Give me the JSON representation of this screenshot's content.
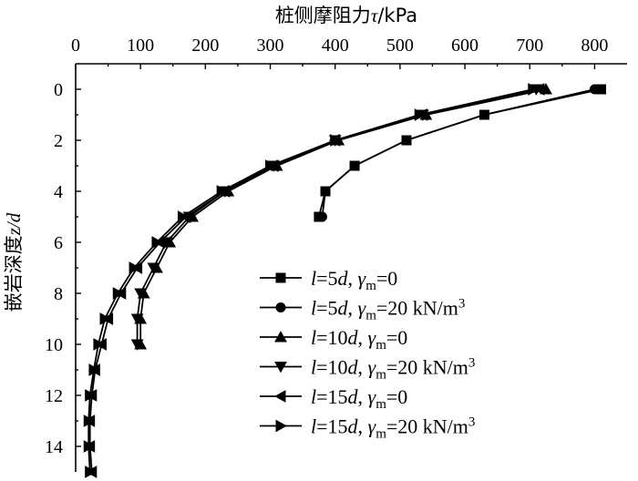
{
  "chart_data": {
    "type": "line",
    "title": "",
    "xlabel_cjk": "桩侧摩阻力",
    "xlabel_var": "τ",
    "xlabel_unit": "/kPa",
    "ylabel_cjk": "嵌岩深度",
    "ylabel_var": "z/d",
    "x_axis_position": "top",
    "y_axis_inverted": true,
    "xlim": [
      0,
      850
    ],
    "ylim": [
      15,
      -1
    ],
    "x_ticks": [
      0,
      100,
      200,
      300,
      400,
      500,
      600,
      700,
      800
    ],
    "y_ticks": [
      0,
      2,
      4,
      6,
      8,
      10,
      12,
      14
    ],
    "grid": false,
    "legend_position": "bottom-right",
    "series": [
      {
        "legend": [
          "l",
          "=5",
          "d",
          ", ",
          "γ",
          "m",
          "=0",
          ""
        ],
        "marker": "square",
        "points": [
          [
            810,
            0
          ],
          [
            630,
            1
          ],
          [
            510,
            2
          ],
          [
            430,
            3
          ],
          [
            385,
            4
          ],
          [
            375,
            5
          ]
        ]
      },
      {
        "legend": [
          "l",
          "=5",
          "d",
          ", ",
          "γ",
          "m",
          "=20 kN/m",
          "3"
        ],
        "marker": "circle",
        "points": [
          [
            800,
            0
          ],
          [
            630,
            1
          ],
          [
            510,
            2
          ],
          [
            430,
            3
          ],
          [
            385,
            4
          ],
          [
            380,
            5
          ]
        ]
      },
      {
        "legend": [
          "l",
          "=10",
          "d",
          ", ",
          "γ",
          "m",
          "=0",
          ""
        ],
        "marker": "triangle-up",
        "points": [
          [
            725,
            0
          ],
          [
            540,
            1
          ],
          [
            405,
            2
          ],
          [
            310,
            3
          ],
          [
            235,
            4
          ],
          [
            180,
            5
          ],
          [
            145,
            6
          ],
          [
            125,
            7
          ],
          [
            105,
            8
          ],
          [
            100,
            9
          ],
          [
            100,
            10
          ]
        ]
      },
      {
        "legend": [
          "l",
          "=10",
          "d",
          ", ",
          "γ",
          "m",
          "=20 kN/m",
          "3"
        ],
        "marker": "triangle-down",
        "points": [
          [
            710,
            0
          ],
          [
            535,
            1
          ],
          [
            400,
            2
          ],
          [
            305,
            3
          ],
          [
            230,
            4
          ],
          [
            175,
            5
          ],
          [
            140,
            6
          ],
          [
            120,
            7
          ],
          [
            100,
            8
          ],
          [
            95,
            9
          ],
          [
            95,
            10
          ]
        ]
      },
      {
        "legend": [
          "l",
          "=15",
          "d",
          ", ",
          "γ",
          "m",
          "=0",
          ""
        ],
        "marker": "triangle-left",
        "points": [
          [
            715,
            0
          ],
          [
            535,
            1
          ],
          [
            400,
            2
          ],
          [
            305,
            3
          ],
          [
            230,
            4
          ],
          [
            170,
            5
          ],
          [
            130,
            6
          ],
          [
            95,
            7
          ],
          [
            70,
            8
          ],
          [
            50,
            9
          ],
          [
            40,
            10
          ],
          [
            30,
            11
          ],
          [
            25,
            12
          ],
          [
            22,
            13
          ],
          [
            22,
            14
          ],
          [
            25,
            15
          ]
        ]
      },
      {
        "legend": [
          "l",
          "=15",
          "d",
          ", ",
          "γ",
          "m",
          "=20 kN/m",
          "3"
        ],
        "marker": "triangle-right",
        "points": [
          [
            705,
            0
          ],
          [
            530,
            1
          ],
          [
            400,
            2
          ],
          [
            300,
            3
          ],
          [
            225,
            4
          ],
          [
            165,
            5
          ],
          [
            125,
            6
          ],
          [
            90,
            7
          ],
          [
            65,
            8
          ],
          [
            45,
            9
          ],
          [
            35,
            10
          ],
          [
            28,
            11
          ],
          [
            22,
            12
          ],
          [
            20,
            13
          ],
          [
            20,
            14
          ],
          [
            22,
            15
          ]
        ]
      }
    ]
  }
}
